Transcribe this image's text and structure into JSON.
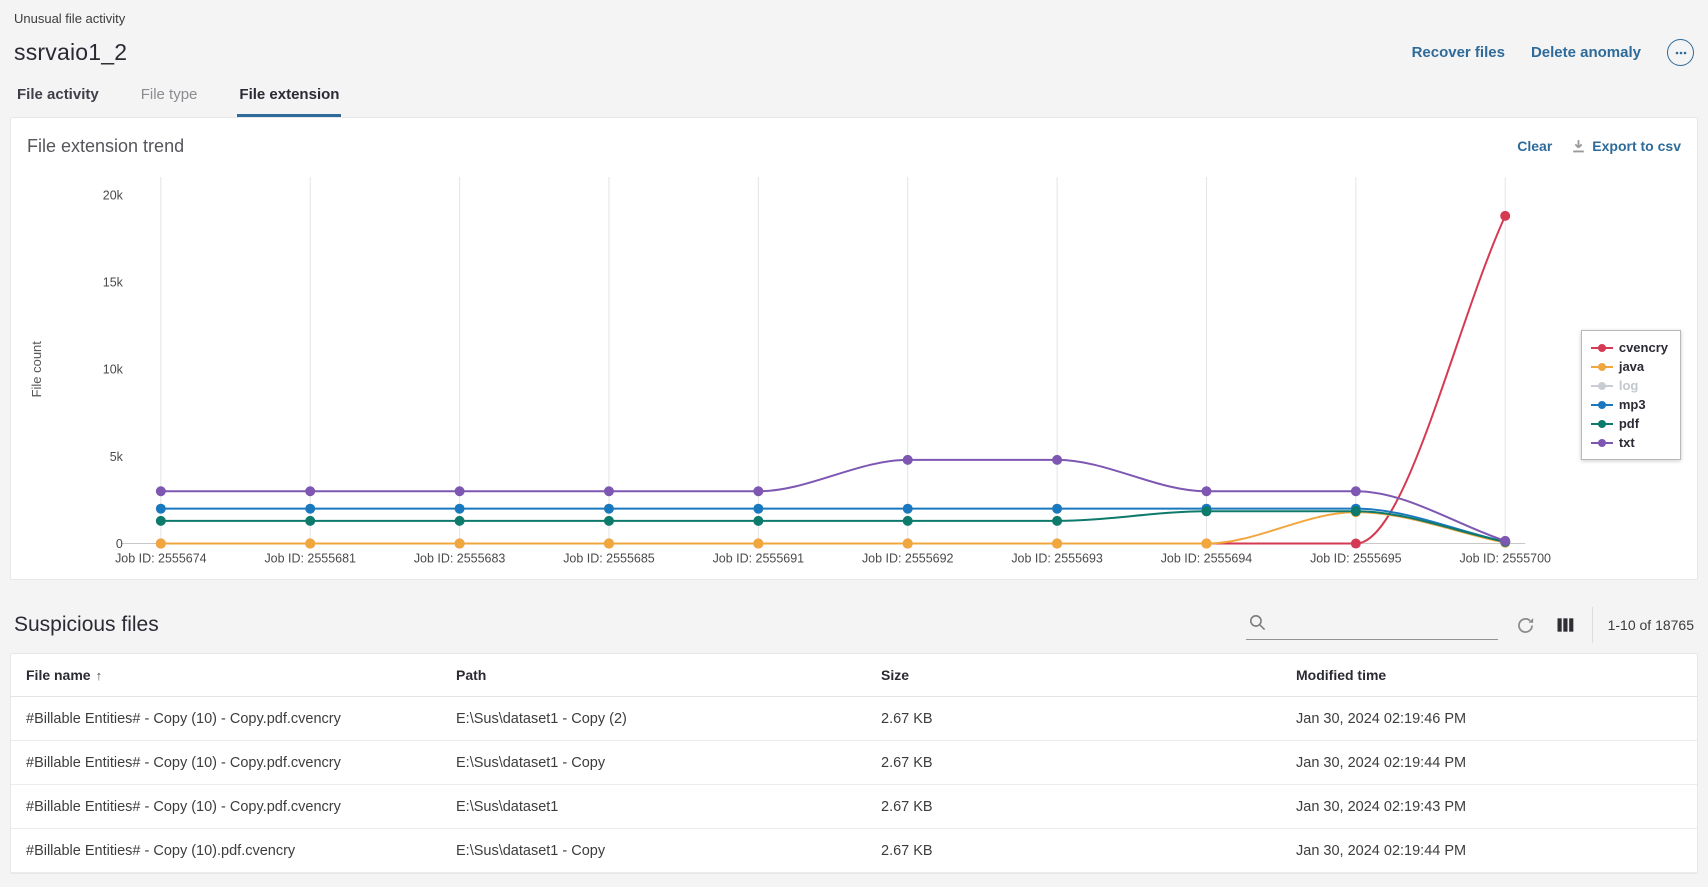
{
  "header": {
    "breadcrumb": "Unusual file activity",
    "title": "ssrvaio1_2",
    "actions": [
      {
        "label": "Recover files"
      },
      {
        "label": "Delete anomaly"
      }
    ],
    "more_icon": "ellipsis-icon"
  },
  "tabs": [
    {
      "label": "File activity",
      "active": false,
      "dim": false
    },
    {
      "label": "File type",
      "active": false,
      "dim": true
    },
    {
      "label": "File extension",
      "active": true,
      "dim": false
    }
  ],
  "chart": {
    "title": "File extension trend",
    "clear_label": "Clear",
    "export_label": "Export to csv",
    "export_icon": "download-icon"
  },
  "chart_data": {
    "type": "line",
    "title": "File extension trend",
    "xlabel": "",
    "ylabel": "File count",
    "categories": [
      "Job ID: 2555674",
      "Job ID: 2555681",
      "Job ID: 2555683",
      "Job ID: 2555685",
      "Job ID: 2555691",
      "Job ID: 2555692",
      "Job ID: 2555693",
      "Job ID: 2555694",
      "Job ID: 2555695",
      "Job ID: 2555700"
    ],
    "ylim": [
      0,
      20000
    ],
    "yticks": [
      {
        "value": 0,
        "label": "0"
      },
      {
        "value": 5000,
        "label": "5k"
      },
      {
        "value": 10000,
        "label": "10k"
      },
      {
        "value": 15000,
        "label": "15k"
      },
      {
        "value": 20000,
        "label": "20k"
      }
    ],
    "grid": "vertical-only",
    "legend_position": "right",
    "smooth": true,
    "series": [
      {
        "name": "cvencry",
        "color": "#d63a52",
        "disabled": false,
        "values": [
          0,
          0,
          0,
          0,
          0,
          0,
          0,
          0,
          0,
          18800
        ]
      },
      {
        "name": "java",
        "color": "#f0a73e",
        "disabled": false,
        "values": [
          0,
          0,
          0,
          0,
          0,
          0,
          0,
          0,
          1800,
          50
        ]
      },
      {
        "name": "log",
        "color": "#c9cdd3",
        "disabled": true,
        "values": []
      },
      {
        "name": "mp3",
        "color": "#1a78be",
        "disabled": false,
        "values": [
          2000,
          2000,
          2000,
          2000,
          2000,
          2000,
          2000,
          2000,
          2000,
          100
        ]
      },
      {
        "name": "pdf",
        "color": "#0e7a6b",
        "disabled": false,
        "values": [
          1300,
          1300,
          1300,
          1300,
          1300,
          1300,
          1300,
          1850,
          1850,
          100
        ]
      },
      {
        "name": "txt",
        "color": "#7e57b2",
        "disabled": false,
        "values": [
          3000,
          3000,
          3000,
          3000,
          3000,
          4800,
          4800,
          3000,
          3000,
          150
        ]
      }
    ]
  },
  "table": {
    "title": "Suspicious files",
    "search_placeholder": "",
    "pagination": "1-10 of 18765",
    "columns": [
      {
        "label": "File name",
        "sort": "asc"
      },
      {
        "label": "Path"
      },
      {
        "label": "Size"
      },
      {
        "label": "Modified time"
      }
    ],
    "rows": [
      [
        "#Billable Entities# - Copy (10) - Copy.pdf.cvencry",
        "E:\\Sus\\dataset1 - Copy (2)",
        "2.67 KB",
        "Jan 30, 2024 02:19:46 PM"
      ],
      [
        "#Billable Entities# - Copy (10) - Copy.pdf.cvencry",
        "E:\\Sus\\dataset1 - Copy",
        "2.67 KB",
        "Jan 30, 2024 02:19:44 PM"
      ],
      [
        "#Billable Entities# - Copy (10) - Copy.pdf.cvencry",
        "E:\\Sus\\dataset1",
        "2.67 KB",
        "Jan 30, 2024 02:19:43 PM"
      ],
      [
        "#Billable Entities# - Copy (10).pdf.cvencry",
        "E:\\Sus\\dataset1 - Copy",
        "2.67 KB",
        "Jan 30, 2024 02:19:44 PM"
      ]
    ]
  }
}
